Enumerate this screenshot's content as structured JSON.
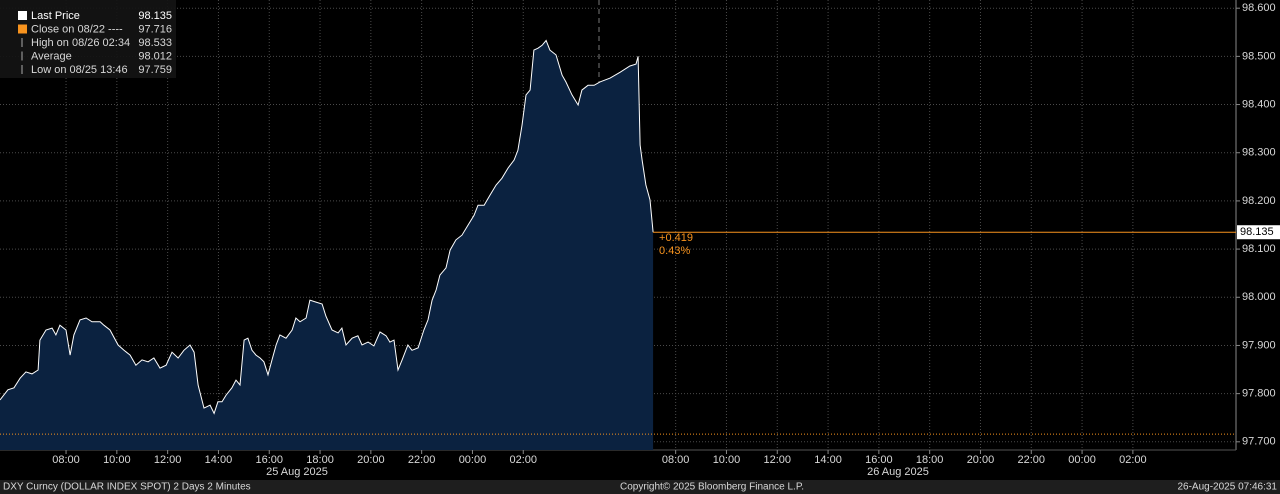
{
  "chart_data": {
    "type": "area",
    "footer_left": "DXY Curncy (DOLLAR INDEX SPOT) 2 Days 2 Minutes",
    "footer_center": "Copyright© 2025 Bloomberg Finance L.P.",
    "footer_right": "26-Aug-2025 07:46:31",
    "date_labels": [
      "25 Aug 2025",
      "26 Aug 2025"
    ],
    "annotations": [
      "+0.419",
      "0.43%"
    ],
    "last_value": 98.135,
    "legend": [
      {
        "label": "Close on 08/22 ----",
        "value": 97.716,
        "color": "#f7931e"
      },
      {
        "label": "High on 08/26 02:34",
        "value": 98.533
      },
      {
        "label": "Average",
        "value": 98.012
      },
      {
        "label": "Low on 08/25 13:46",
        "value": 97.759
      }
    ],
    "reference_color": "#f7931e",
    "fill_color": "#0b2240",
    "grid": true,
    "xlim": [
      5.4,
      54.06
    ],
    "ylim": [
      97.683,
      98.617
    ],
    "xticks": [
      {
        "value": 8,
        "label": "08:00"
      },
      {
        "value": 10,
        "label": "10:00"
      },
      {
        "value": 12,
        "label": "12:00"
      },
      {
        "value": 14,
        "label": "14:00"
      },
      {
        "value": 16,
        "label": "16:00"
      },
      {
        "value": 18,
        "label": "18:00"
      },
      {
        "value": 20,
        "label": "20:00"
      },
      {
        "value": 22,
        "label": "22:00"
      },
      {
        "value": 24,
        "label": "00:00"
      },
      {
        "value": 26,
        "label": "02:00"
      },
      {
        "value": 32,
        "label": "08:00"
      },
      {
        "value": 34,
        "label": "10:00"
      },
      {
        "value": 36,
        "label": "12:00"
      },
      {
        "value": 38,
        "label": "14:00"
      },
      {
        "value": 40,
        "label": "16:00"
      },
      {
        "value": 42,
        "label": "18:00"
      },
      {
        "value": 44,
        "label": "20:00"
      },
      {
        "value": 46,
        "label": "22:00"
      },
      {
        "value": 48,
        "label": "00:00"
      },
      {
        "value": 50,
        "label": "02:00"
      }
    ],
    "yticks": [
      {
        "value": 97.7,
        "label": "97.700"
      },
      {
        "value": 97.8,
        "label": "97.800"
      },
      {
        "value": 97.9,
        "label": "97.900"
      },
      {
        "value": 98.0,
        "label": "98.000"
      },
      {
        "value": 98.1,
        "label": "98.100"
      },
      {
        "value": 98.2,
        "label": "98.200"
      },
      {
        "value": 98.3,
        "label": "98.300"
      },
      {
        "value": 98.4,
        "label": "98.400"
      },
      {
        "value": 98.5,
        "label": "98.500"
      },
      {
        "value": 98.6,
        "label": "98.600"
      }
    ],
    "x": [
      5.4,
      5.71,
      5.95,
      6.19,
      6.42,
      6.66,
      6.9,
      6.97,
      7.21,
      7.45,
      7.6,
      7.76,
      8.0,
      8.16,
      8.31,
      8.55,
      8.79,
      9.02,
      9.34,
      9.49,
      9.73,
      10.05,
      10.28,
      10.52,
      10.75,
      10.99,
      11.23,
      11.46,
      11.7,
      11.94,
      12.17,
      12.41,
      12.64,
      12.88,
      13.04,
      13.2,
      13.43,
      13.67,
      13.83,
      13.98,
      14.14,
      14.3,
      14.53,
      14.69,
      14.85,
      15.01,
      15.16,
      15.32,
      15.48,
      15.64,
      15.79,
      15.95,
      16.11,
      16.27,
      16.42,
      16.66,
      16.9,
      17.05,
      17.21,
      17.45,
      17.6,
      17.84,
      18.08,
      18.23,
      18.47,
      18.71,
      18.86,
      19.02,
      19.26,
      19.49,
      19.65,
      19.89,
      20.12,
      20.36,
      20.6,
      20.75,
      20.91,
      21.07,
      21.23,
      21.46,
      21.62,
      21.86,
      22.09,
      22.25,
      22.41,
      22.57,
      22.72,
      22.96,
      23.12,
      23.35,
      23.59,
      23.83,
      24.06,
      24.22,
      24.46,
      24.69,
      24.93,
      25.16,
      25.4,
      25.64,
      25.79,
      25.95,
      26.11,
      26.27,
      26.42,
      26.58,
      26.74,
      26.9,
      27.05,
      27.29,
      27.53,
      27.68,
      27.92,
      28.16,
      28.31,
      28.55,
      28.79,
      29.02,
      29.42,
      29.81,
      30.2,
      30.44,
      30.52,
      30.6,
      30.68,
      30.83,
      30.99,
      31.11
    ],
    "series": [
      {
        "name": "Last Price",
        "color": "#ffffff",
        "values": [
          97.787,
          97.808,
          97.812,
          97.832,
          97.845,
          97.841,
          97.849,
          97.911,
          97.932,
          97.936,
          97.922,
          97.942,
          97.932,
          97.88,
          97.922,
          97.953,
          97.957,
          97.949,
          97.949,
          97.942,
          97.932,
          97.901,
          97.89,
          97.88,
          97.859,
          97.87,
          97.866,
          97.874,
          97.853,
          97.859,
          97.886,
          97.874,
          97.89,
          97.901,
          97.886,
          97.818,
          97.77,
          97.776,
          97.759,
          97.783,
          97.783,
          97.797,
          97.812,
          97.828,
          97.818,
          97.911,
          97.915,
          97.89,
          97.88,
          97.874,
          97.866,
          97.839,
          97.87,
          97.901,
          97.922,
          97.915,
          97.932,
          97.957,
          97.949,
          97.957,
          97.994,
          97.99,
          97.986,
          97.961,
          97.932,
          97.926,
          97.936,
          97.901,
          97.915,
          97.92,
          97.901,
          97.907,
          97.899,
          97.928,
          97.92,
          97.907,
          97.911,
          97.849,
          97.87,
          97.901,
          97.89,
          97.895,
          97.932,
          97.953,
          97.994,
          98.015,
          98.046,
          98.061,
          98.098,
          98.119,
          98.129,
          98.15,
          98.17,
          98.191,
          98.191,
          98.212,
          98.233,
          98.247,
          98.268,
          98.285,
          98.305,
          98.357,
          98.42,
          98.43,
          98.513,
          98.517,
          98.523,
          98.533,
          98.513,
          98.503,
          98.461,
          98.447,
          98.42,
          98.399,
          98.43,
          98.44,
          98.44,
          98.447,
          98.455,
          98.467,
          98.48,
          98.484,
          98.5,
          98.316,
          98.285,
          98.233,
          98.202,
          98.135
        ]
      }
    ]
  }
}
